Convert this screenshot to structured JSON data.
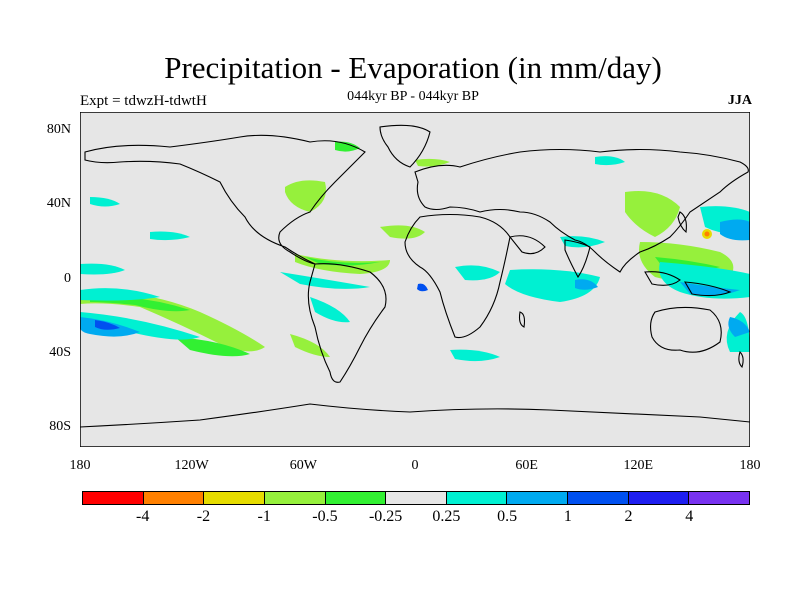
{
  "title": "Precipitation - Evaporation (in mm/day)",
  "subtitle": "044kyr BP - 044kyr BP",
  "left_label": "Expt = tdwzH-tdwtH",
  "right_label": "JJA",
  "map": {
    "projection": "cylindrical equidistant",
    "background_color": "#e6e6e6",
    "x_range": [
      -180,
      180
    ],
    "y_range": [
      -90,
      90
    ],
    "y_ticks": [
      {
        "value": 80,
        "label": "80N"
      },
      {
        "value": 40,
        "label": "40N"
      },
      {
        "value": 0,
        "label": "0"
      },
      {
        "value": -40,
        "label": "40S"
      },
      {
        "value": -80,
        "label": "80S"
      }
    ],
    "x_ticks": [
      {
        "value": -180,
        "label": "180"
      },
      {
        "value": -120,
        "label": "120W"
      },
      {
        "value": -60,
        "label": "60W"
      },
      {
        "value": 0,
        "label": "0"
      },
      {
        "value": 60,
        "label": "60E"
      },
      {
        "value": 120,
        "label": "120E"
      },
      {
        "value": 180,
        "label": "180"
      }
    ]
  },
  "colorbar": {
    "colors": [
      "#ff0000",
      "#ff8000",
      "#e6dc00",
      "#96f03c",
      "#32f032",
      "#e6e6e6",
      "#00f0d2",
      "#00aaf0",
      "#0050f0",
      "#1e1ef0",
      "#7832f0"
    ],
    "labels": [
      "-4",
      "-2",
      "-1",
      "-0.5",
      "-0.25",
      "0.25",
      "0.5",
      "1",
      "2",
      "4"
    ]
  }
}
